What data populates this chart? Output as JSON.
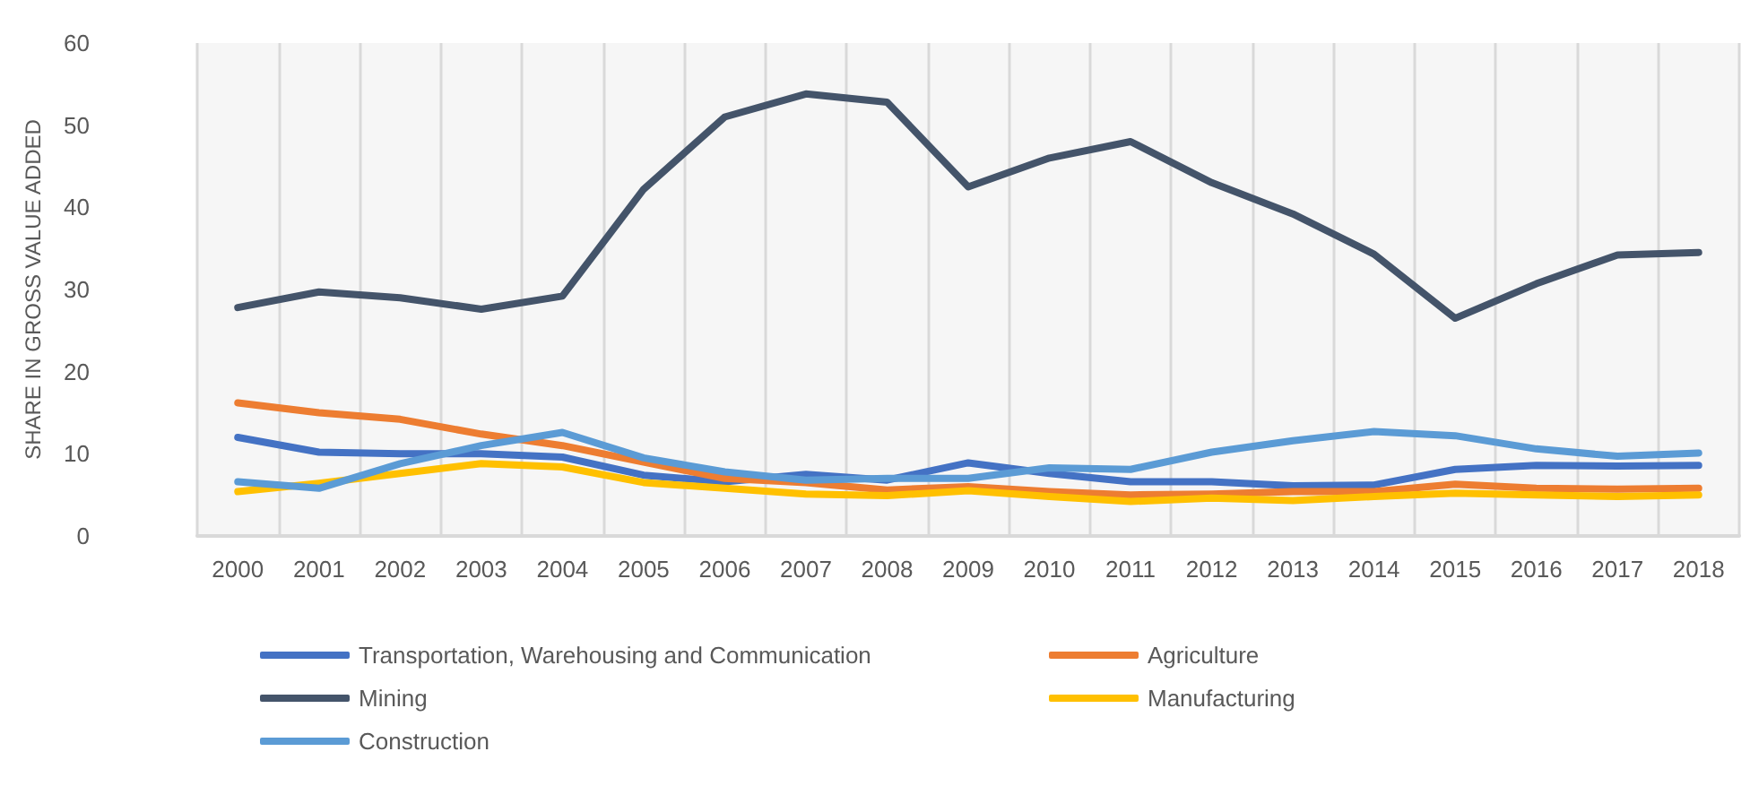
{
  "chart_data": {
    "type": "line",
    "ylabel": "SHARE IN GROSS VALUE ADDED",
    "categories": [
      "2000",
      "2001",
      "2002",
      "2003",
      "2004",
      "2005",
      "2006",
      "2007",
      "2008",
      "2009",
      "2010",
      "2011",
      "2012",
      "2013",
      "2014",
      "2015",
      "2016",
      "2017",
      "2018"
    ],
    "series": [
      {
        "name": "Transportation, Warehousing and Communication",
        "color": "#4472c4",
        "values": [
          12,
          10.2,
          10,
          10,
          9.6,
          7.4,
          6.6,
          7.5,
          6.8,
          8.9,
          7.6,
          6.6,
          6.6,
          6.1,
          6.2,
          8.1,
          8.6,
          8.5,
          8.6
        ]
      },
      {
        "name": "Agriculture",
        "color": "#ed7d31",
        "values": [
          16.2,
          15,
          14.2,
          12.4,
          11,
          9,
          7,
          6.5,
          5.6,
          6,
          5.4,
          5,
          5.1,
          5.4,
          5.4,
          6.3,
          5.8,
          5.7,
          5.8
        ]
      },
      {
        "name": "Mining",
        "color": "#44546a",
        "values": [
          27.8,
          29.7,
          29,
          27.6,
          29.2,
          42.2,
          51,
          53.8,
          52.8,
          42.5,
          46,
          48,
          43,
          39.2,
          34.3,
          26.5,
          30.7,
          34.2,
          34.5
        ]
      },
      {
        "name": "Manufacturing",
        "color": "#ffc000",
        "values": [
          5.4,
          6.4,
          7.6,
          8.8,
          8.4,
          6.5,
          5.8,
          5.1,
          4.9,
          5.5,
          4.8,
          4.2,
          4.6,
          4.3,
          4.8,
          5.2,
          5,
          4.8,
          5
        ]
      },
      {
        "name": "Construction",
        "color": "#5b9bd5",
        "values": [
          6.6,
          5.8,
          8.8,
          11,
          12.6,
          9.5,
          7.8,
          6.8,
          7,
          7,
          8.3,
          8.1,
          10.2,
          11.6,
          12.7,
          12.2,
          10.6,
          9.7,
          10.1
        ]
      }
    ],
    "ylim": [
      0,
      60
    ],
    "yticks": [
      0,
      10,
      20,
      30,
      40,
      50,
      60
    ],
    "grid": "x",
    "legend": "bottom",
    "marker": "none",
    "line_style": "solid"
  }
}
